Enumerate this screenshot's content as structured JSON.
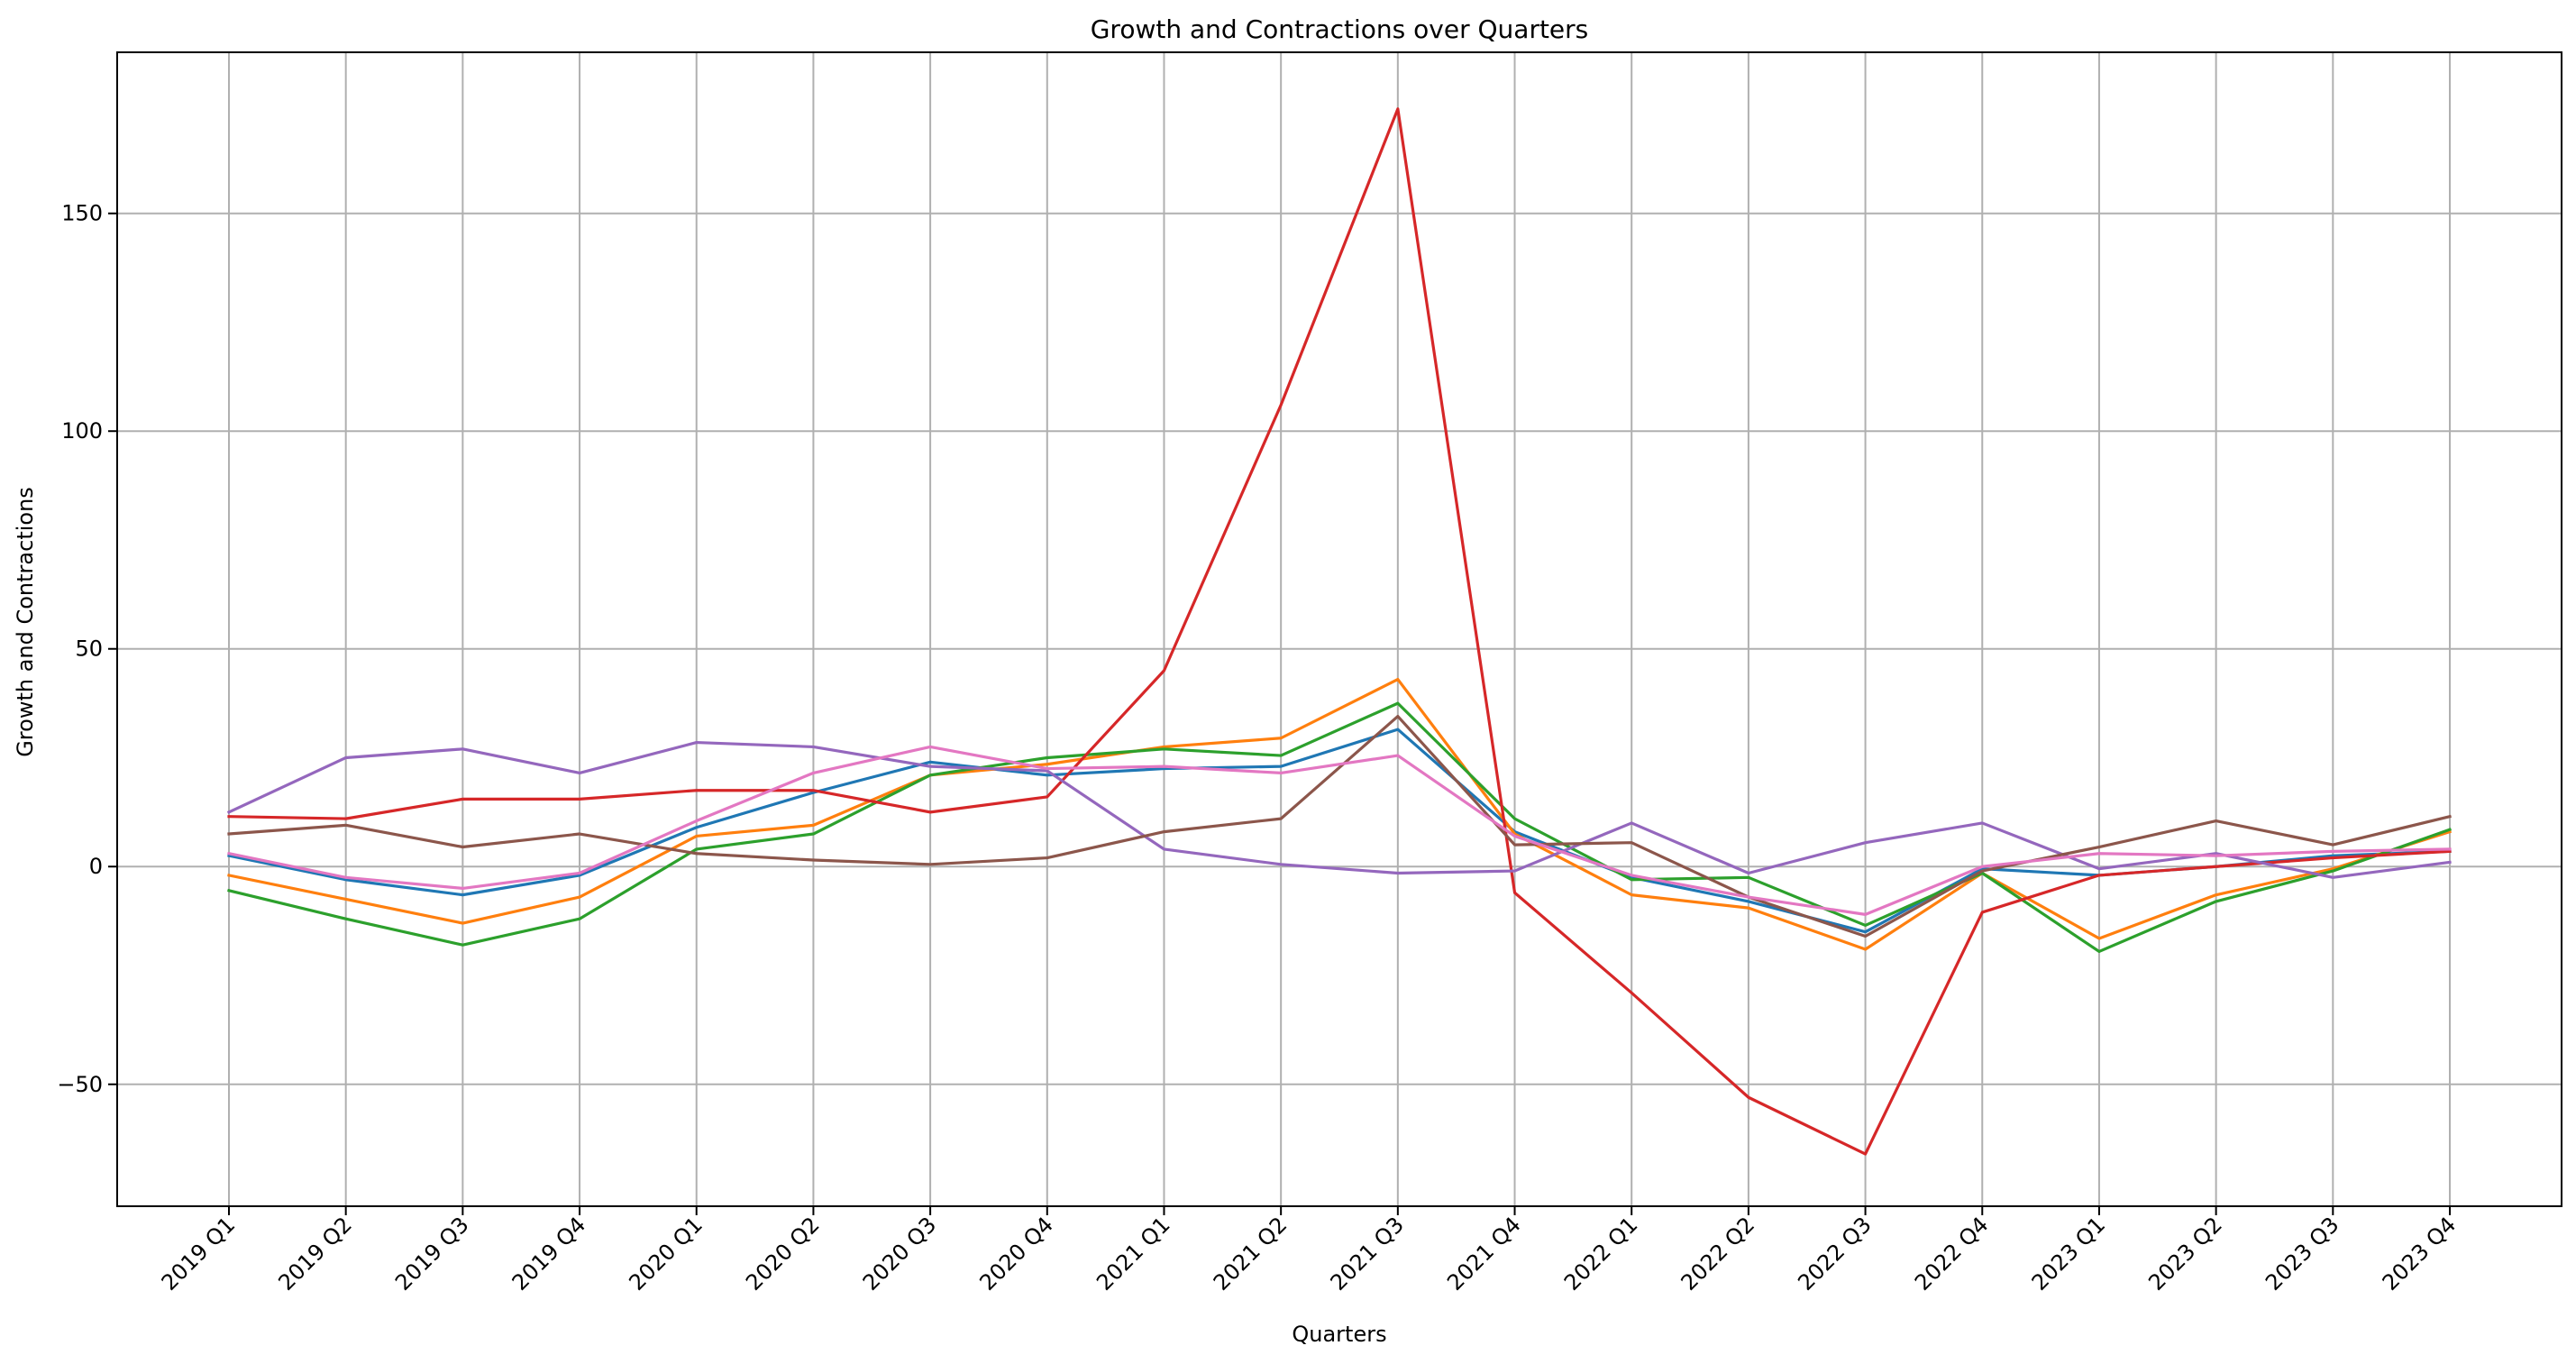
{
  "chart_data": {
    "type": "line",
    "title": "Growth and Contractions over Quarters",
    "xlabel": "Quarters",
    "ylabel": "Growth and Contractions",
    "categories": [
      "2019 Q1",
      "2019 Q2",
      "2019 Q3",
      "2019 Q4",
      "2020 Q1",
      "2020 Q2",
      "2020 Q3",
      "2020 Q4",
      "2021 Q1",
      "2021 Q2",
      "2021 Q3",
      "2021 Q4",
      "2022 Q1",
      "2022 Q2",
      "2022 Q3",
      "2022 Q4",
      "2023 Q1",
      "2023 Q2",
      "2023 Q3",
      "2023 Q4"
    ],
    "ylim": [
      -78,
      187
    ],
    "yticks": [
      -50,
      0,
      50,
      100,
      150
    ],
    "ytick_labels": [
      "−50",
      "0",
      "50",
      "100",
      "150"
    ],
    "grid": true,
    "series": [
      {
        "color": "#1f77b4",
        "values": [
          2.5,
          -3.0,
          -6.5,
          -2.0,
          9.0,
          17.0,
          24.0,
          21.0,
          22.5,
          23.0,
          31.5,
          8.0,
          -2.5,
          -8.0,
          -15.0,
          -0.5,
          -2.0,
          0.0,
          2.5,
          3.5
        ]
      },
      {
        "color": "#ff7f0e",
        "values": [
          -2.0,
          -7.5,
          -13.0,
          -7.0,
          7.0,
          9.5,
          21.0,
          23.5,
          27.5,
          29.5,
          43.0,
          7.5,
          -6.5,
          -9.5,
          -19.0,
          -1.5,
          -16.5,
          -6.5,
          -0.5,
          8.0
        ]
      },
      {
        "color": "#2ca02c",
        "values": [
          -5.5,
          -12.0,
          -18.0,
          -12.0,
          4.0,
          7.5,
          21.0,
          25.0,
          27.0,
          25.5,
          37.5,
          11.0,
          -3.0,
          -2.5,
          -13.5,
          -1.5,
          -19.5,
          -8.0,
          -1.0,
          8.5
        ]
      },
      {
        "color": "#d62728",
        "values": [
          11.5,
          11.0,
          15.5,
          15.5,
          17.5,
          17.5,
          12.5,
          16.0,
          45.0,
          106.0,
          174.0,
          -6.0,
          -29.0,
          -53.0,
          -66.0,
          -10.5,
          -2.0,
          0.0,
          2.0,
          3.5
        ]
      },
      {
        "color": "#9467bd",
        "values": [
          12.5,
          25.0,
          27.0,
          21.5,
          28.5,
          27.5,
          23.0,
          22.0,
          4.0,
          0.5,
          -1.5,
          -1.0,
          10.0,
          -1.5,
          5.5,
          10.0,
          -0.5,
          3.0,
          -2.5,
          1.0
        ]
      },
      {
        "color": "#8c564b",
        "values": [
          7.5,
          9.5,
          4.5,
          7.5,
          3.0,
          1.5,
          0.5,
          2.0,
          8.0,
          11.0,
          34.5,
          5.0,
          5.5,
          -7.0,
          -16.0,
          -1.0,
          4.5,
          10.5,
          5.0,
          11.5
        ]
      },
      {
        "color": "#e377c2",
        "values": [
          3.0,
          -2.5,
          -5.0,
          -1.5,
          10.5,
          21.5,
          27.5,
          22.5,
          23.0,
          21.5,
          25.5,
          7.0,
          -2.0,
          -7.0,
          -11.0,
          0.0,
          3.0,
          2.5,
          3.5,
          4.0
        ]
      }
    ]
  }
}
